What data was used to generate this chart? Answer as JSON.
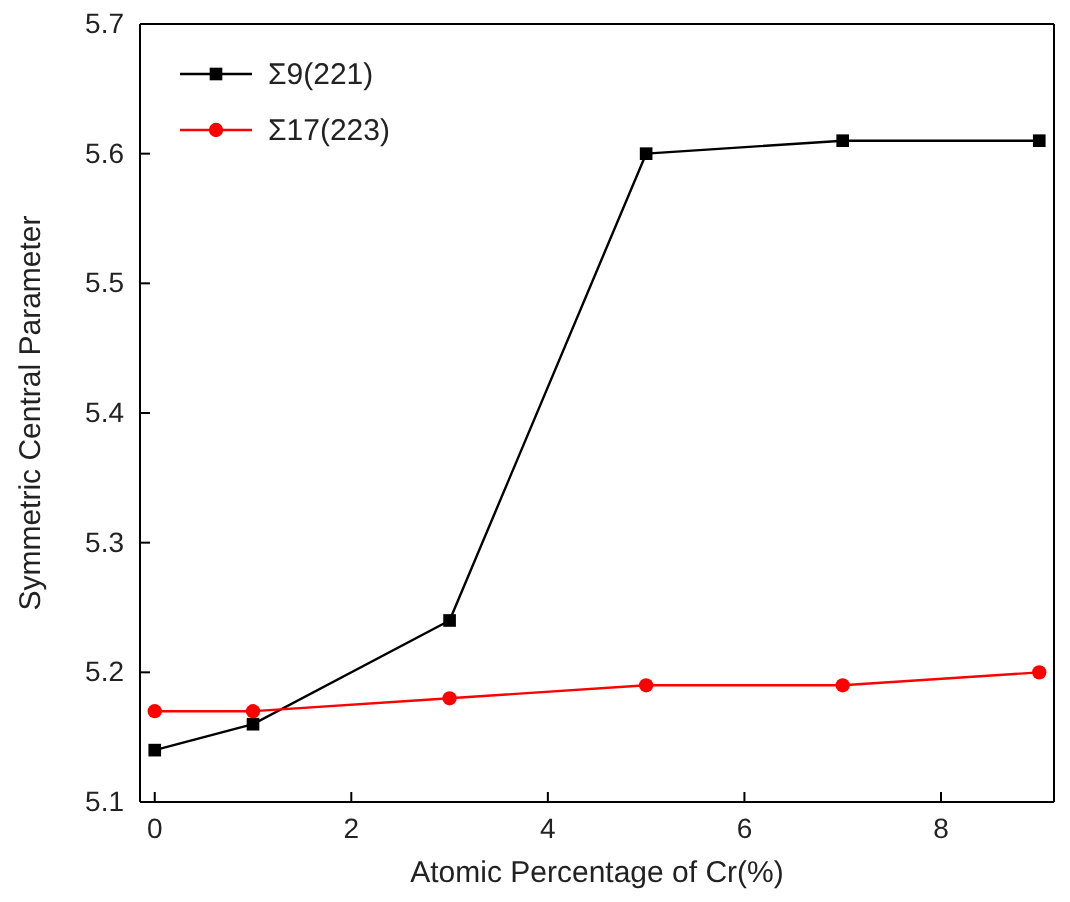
{
  "chart_data": {
    "type": "line",
    "xlabel": "Atomic Percentage of Cr(%)",
    "ylabel": "Symmetric Central Parameter",
    "x": [
      0,
      1,
      3,
      5,
      7,
      9
    ],
    "series": [
      {
        "name": "Σ9(221)",
        "color": "#000000",
        "marker": "square",
        "values": [
          5.14,
          5.16,
          5.24,
          5.6,
          5.61,
          5.61
        ]
      },
      {
        "name": "Σ17(223)",
        "color": "#ff0000",
        "marker": "circle",
        "values": [
          5.17,
          5.17,
          5.18,
          5.19,
          5.19,
          5.2
        ]
      }
    ],
    "xlim": [
      -0.15,
      9.15
    ],
    "xticks": [
      0,
      2,
      4,
      6,
      8
    ],
    "ylim": [
      5.1,
      5.7
    ],
    "yticks": [
      5.1,
      5.2,
      5.3,
      5.4,
      5.5,
      5.6,
      5.7
    ],
    "grid": false,
    "legend": "top left",
    "line_style": "solid"
  }
}
